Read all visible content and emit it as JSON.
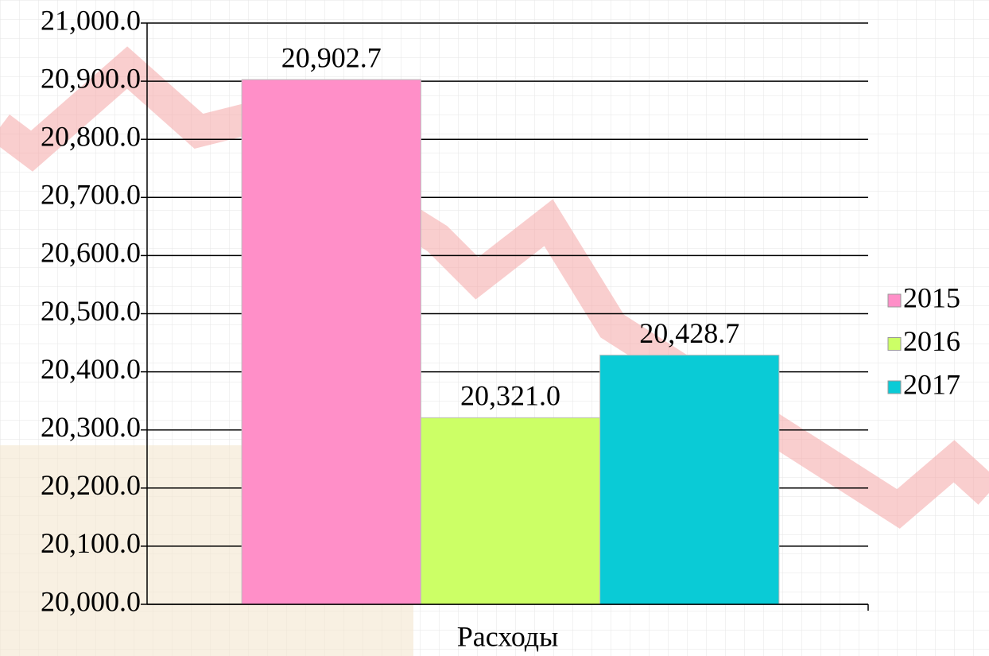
{
  "chart_data": {
    "type": "bar",
    "categories": [
      "Расходы"
    ],
    "series": [
      {
        "name": "2015",
        "color": "#ff8fc8",
        "values": [
          20902.7
        ],
        "value_labels": [
          "20,902.7"
        ]
      },
      {
        "name": "2016",
        "color": "#ccff66",
        "values": [
          20321.0
        ],
        "value_labels": [
          "20,321.0"
        ]
      },
      {
        "name": "2017",
        "color": "#0acbd6",
        "values": [
          20428.7
        ],
        "value_labels": [
          "20,428.7"
        ]
      }
    ],
    "ylim": [
      20000,
      21000
    ],
    "yticks": [
      {
        "value": 20000,
        "label": "20,000.0"
      },
      {
        "value": 20100,
        "label": "20,100.0"
      },
      {
        "value": 20200,
        "label": "20,200.0"
      },
      {
        "value": 20300,
        "label": "20,300.0"
      },
      {
        "value": 20400,
        "label": "20,400.0"
      },
      {
        "value": 20500,
        "label": "20,500.0"
      },
      {
        "value": 20600,
        "label": "20,600.0"
      },
      {
        "value": 20700,
        "label": "20,700.0"
      },
      {
        "value": 20800,
        "label": "20,800.0"
      },
      {
        "value": 20900,
        "label": "20,900.0"
      },
      {
        "value": 21000,
        "label": "21,000.0"
      }
    ],
    "grid": true,
    "legend": "right"
  }
}
